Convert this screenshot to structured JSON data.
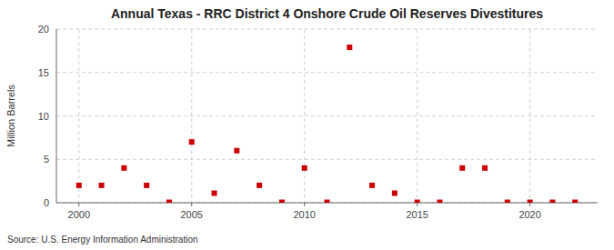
{
  "chart_data": {
    "type": "scatter",
    "title": "Annual Texas - RRC District 4 Onshore Crude Oil Reserves Divestitures",
    "ylabel": "Million Barrels",
    "annotations": [
      "Source: U.S. Energy Information Administration"
    ],
    "x": [
      2000,
      2001,
      2002,
      2003,
      2004,
      2005,
      2006,
      2007,
      2008,
      2009,
      2010,
      2011,
      2012,
      2013,
      2014,
      2015,
      2016,
      2017,
      2018,
      2019,
      2020,
      2021,
      2022
    ],
    "values": [
      2.0,
      2.0,
      4.0,
      2.0,
      0.05,
      7.0,
      1.1,
      6.0,
      2.0,
      0.05,
      4.0,
      0.05,
      17.9,
      2.0,
      1.1,
      0.05,
      0.05,
      4.0,
      4.0,
      0.05,
      0.05,
      0.05,
      0.05
    ],
    "color": "#cc0000",
    "marker": "square",
    "xlim": [
      1999,
      2023
    ],
    "xticks": [
      2000,
      2005,
      2010,
      2015,
      2020
    ],
    "ylim": [
      0,
      20
    ],
    "yticks": [
      0,
      5,
      10,
      15,
      20
    ],
    "grid": true
  }
}
